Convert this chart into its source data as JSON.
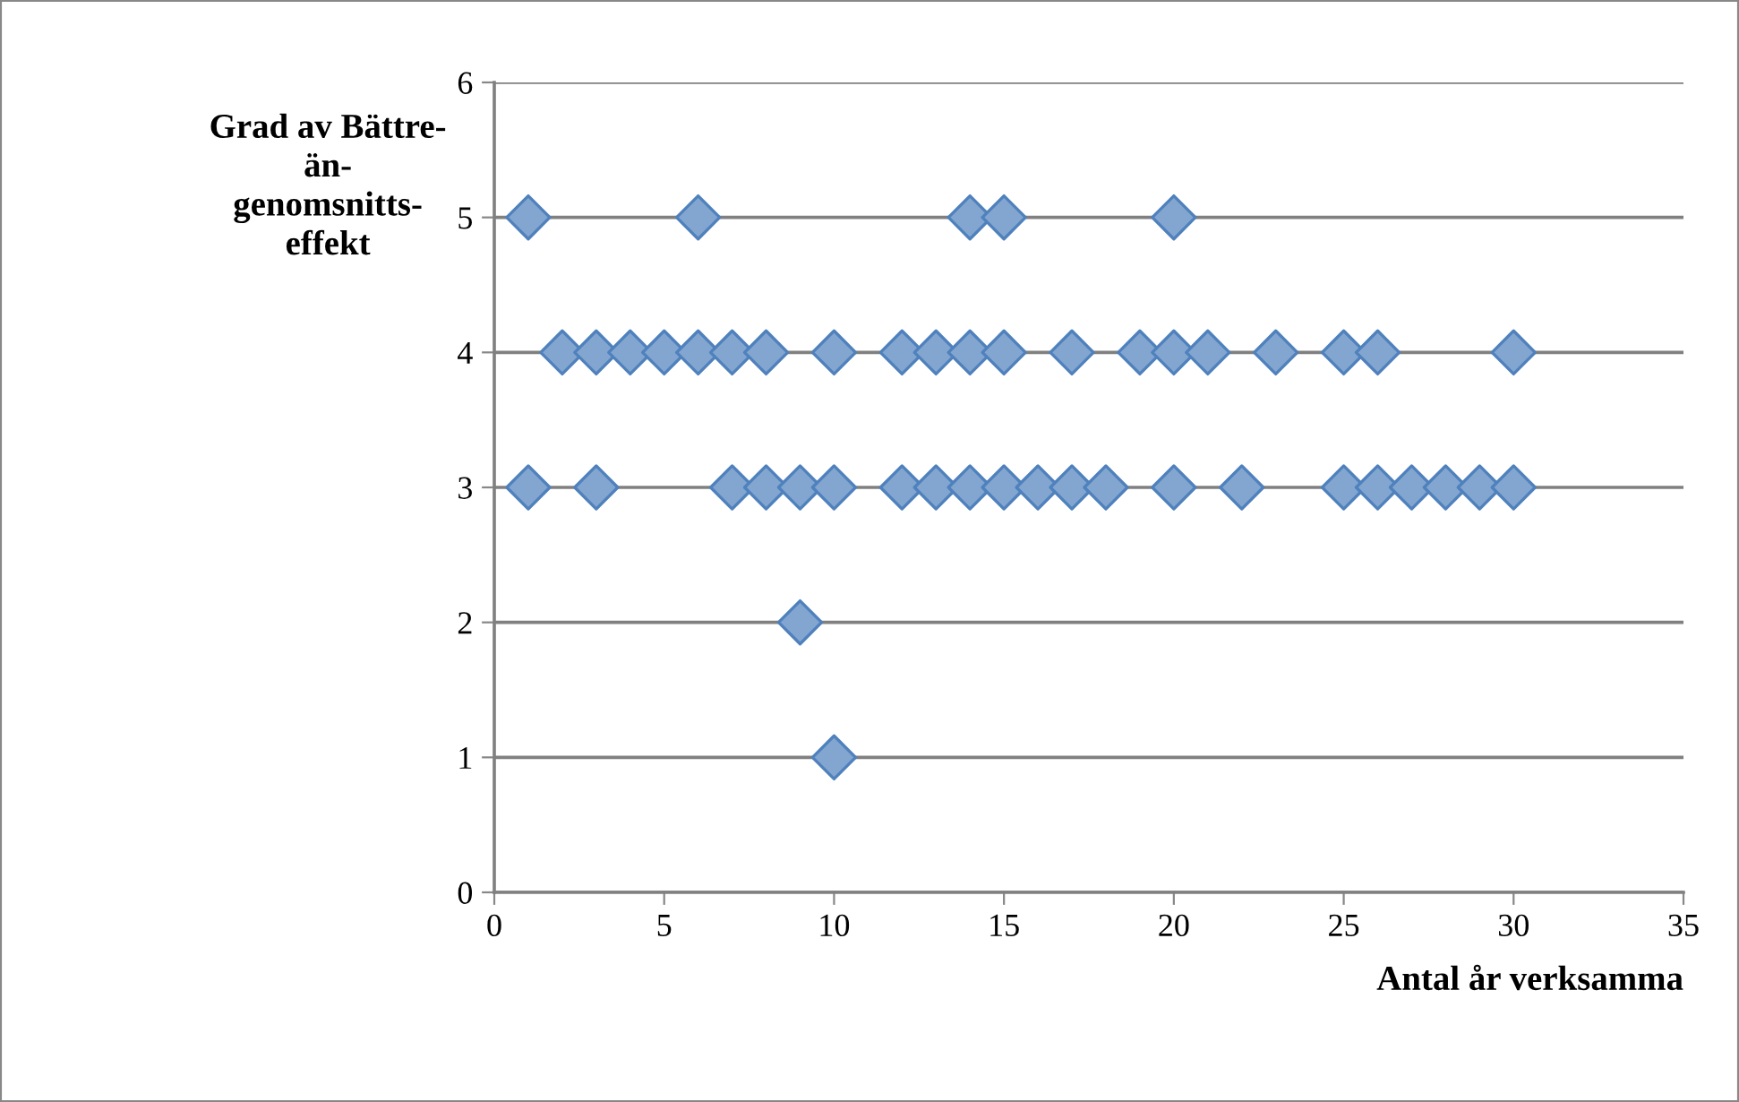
{
  "chart_data": {
    "type": "scatter",
    "xlabel": "Antal år verksamma",
    "ylabel": "Grad av Bättre-än-genomsnitts-effekt",
    "series": [
      {
        "color": "#4f81bd",
        "x": [
          1,
          6,
          14,
          15,
          20,
          2,
          3,
          4,
          5,
          6,
          7,
          8,
          10,
          12,
          13,
          14,
          15,
          17,
          19,
          20,
          21,
          23,
          25,
          26,
          30,
          1,
          3,
          7,
          8,
          9,
          10,
          12,
          13,
          14,
          15,
          16,
          17,
          18,
          20,
          22,
          25,
          26,
          27,
          28,
          29,
          30,
          9,
          10
        ],
        "values": [
          5,
          5,
          5,
          5,
          5,
          4,
          4,
          4,
          4,
          4,
          4,
          4,
          4,
          4,
          4,
          4,
          4,
          4,
          4,
          4,
          4,
          4,
          4,
          4,
          4,
          3,
          3,
          3,
          3,
          3,
          3,
          3,
          3,
          3,
          3,
          3,
          3,
          3,
          3,
          3,
          3,
          3,
          3,
          3,
          3,
          3,
          2,
          1
        ]
      }
    ],
    "xlim": [
      0,
      35
    ],
    "xticks": [
      0,
      5,
      10,
      15,
      20,
      25,
      30,
      35
    ],
    "ylim": [
      0,
      6
    ],
    "yticks": [
      0,
      1,
      2,
      3,
      4,
      5,
      6
    ],
    "grid": "y",
    "marker": "diamond"
  }
}
